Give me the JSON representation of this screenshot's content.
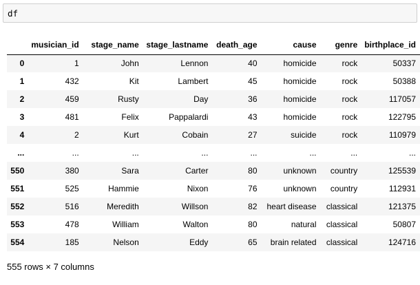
{
  "cell": {
    "code": "df"
  },
  "table": {
    "columns": [
      "",
      "musician_id",
      "stage_name",
      "stage_lastname",
      "death_age",
      "cause",
      "genre",
      "birthplace_id"
    ],
    "rows": [
      [
        "0",
        "1",
        "John",
        "Lennon",
        "40",
        "homicide",
        "rock",
        "50337"
      ],
      [
        "1",
        "432",
        "Kit",
        "Lambert",
        "45",
        "homicide",
        "rock",
        "50388"
      ],
      [
        "2",
        "459",
        "Rusty",
        "Day",
        "36",
        "homicide",
        "rock",
        "117057"
      ],
      [
        "3",
        "481",
        "Felix",
        "Pappalardi",
        "43",
        "homicide",
        "rock",
        "122795"
      ],
      [
        "4",
        "2",
        "Kurt",
        "Cobain",
        "27",
        "suicide",
        "rock",
        "110979"
      ],
      [
        "...",
        "...",
        "...",
        "...",
        "...",
        "...",
        "...",
        "..."
      ],
      [
        "550",
        "380",
        "Sara",
        "Carter",
        "80",
        "unknown",
        "country",
        "125539"
      ],
      [
        "551",
        "525",
        "Hammie",
        "Nixon",
        "76",
        "unknown",
        "country",
        "112931"
      ],
      [
        "552",
        "516",
        "Meredith",
        "Willson",
        "82",
        "heart disease",
        "classical",
        "121375"
      ],
      [
        "553",
        "478",
        "William",
        "Walton",
        "80",
        "natural",
        "classical",
        "50807"
      ],
      [
        "554",
        "185",
        "Nelson",
        "Eddy",
        "65",
        "brain related",
        "classical",
        "124716"
      ]
    ]
  },
  "summary": "555 rows × 7 columns"
}
